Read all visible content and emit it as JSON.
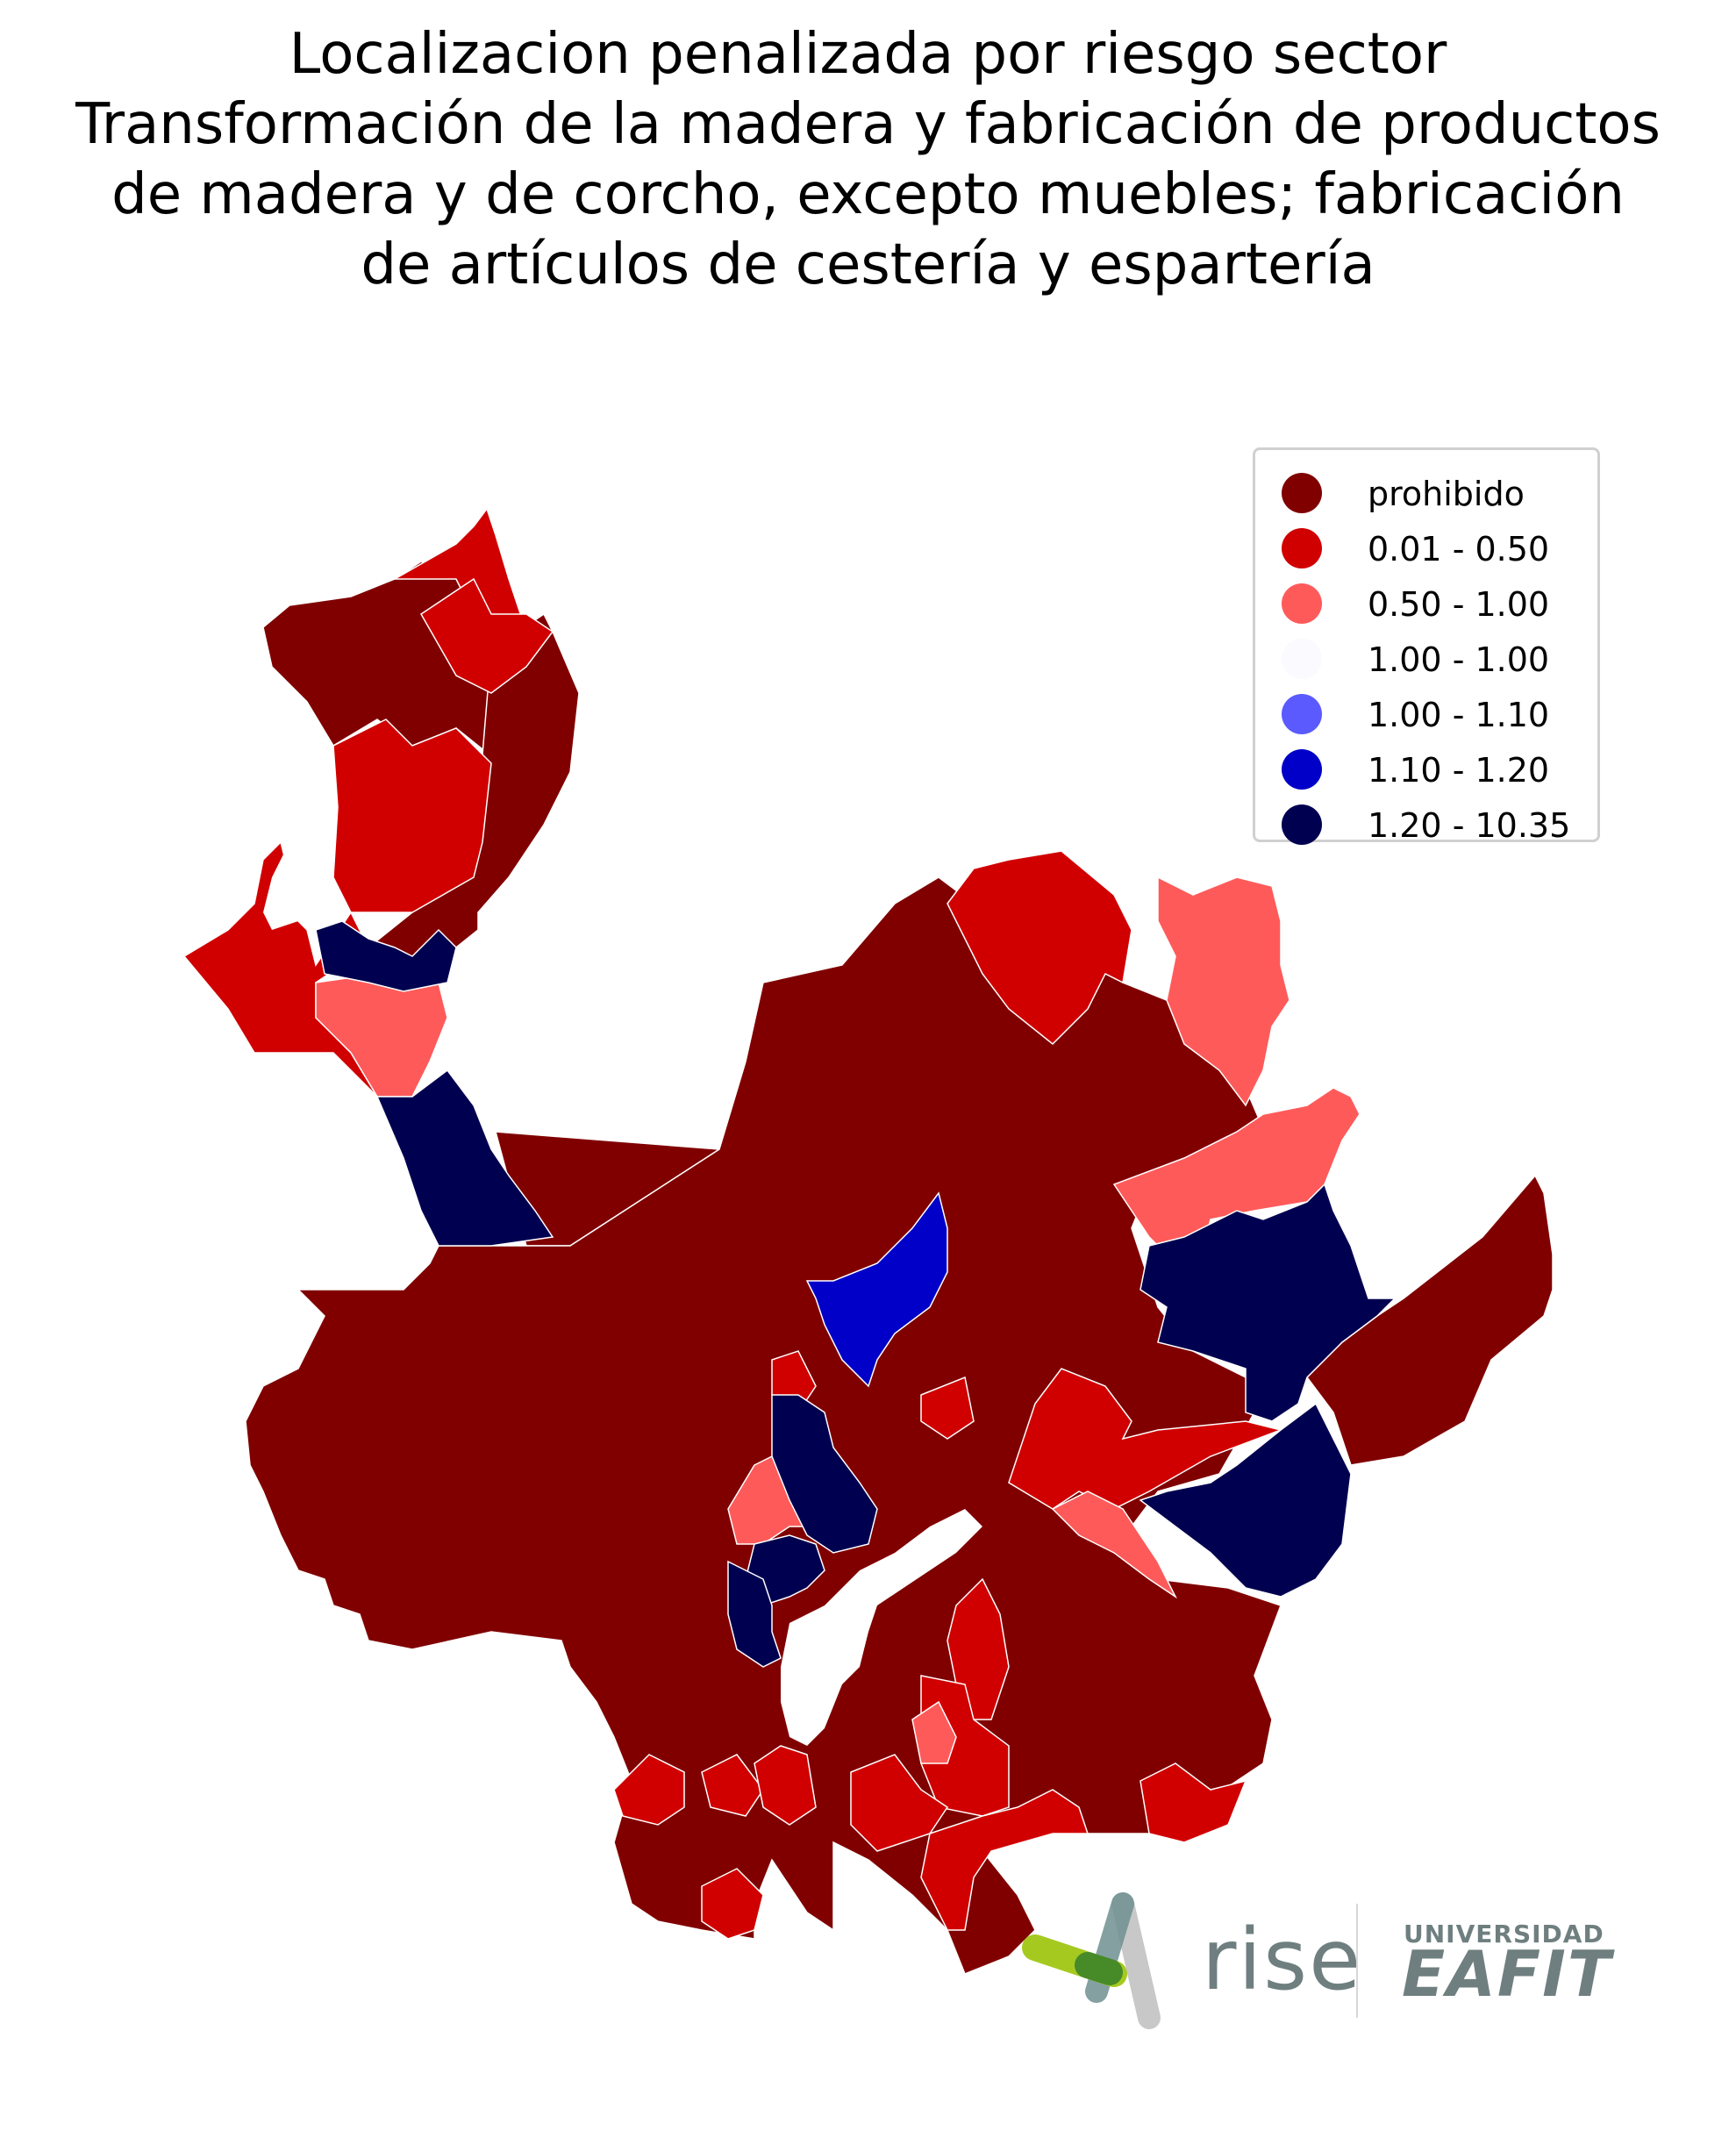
{
  "title": {
    "lines": [
      "Localizacion penalizada por riesgo sector",
      "Transformación de la madera y fabricación de productos",
      "de madera y de corcho, excepto muebles; fabricación",
      "de artículos de cestería y espartería"
    ]
  },
  "legend": {
    "items": [
      {
        "label": "prohibido",
        "color": "#800000"
      },
      {
        "label": "0.01 - 0.50",
        "color": "#d10000"
      },
      {
        "label": "0.50 - 1.00",
        "color": "#ff5a5a"
      },
      {
        "label": "1.00 - 1.00",
        "color": "#fafaff"
      },
      {
        "label": "1.00 - 1.10",
        "color": "#5a5aff"
      },
      {
        "label": "1.10 - 1.20",
        "color": "#0000c8"
      },
      {
        "label": "1.20 - 10.35",
        "color": "#000050"
      }
    ]
  },
  "map_colors": {
    "prohibido": "#800000",
    "low": "#d10000",
    "mid": "#ff5a5a",
    "high1": "#0000c8",
    "high2": "#000050",
    "border": "#ffffff"
  },
  "logos": {
    "rise": "rise",
    "university_top": "UNIVERSIDAD",
    "university_name": "EAFIT",
    "rise_green": "#a6c91f",
    "rise_dark_green": "#2f7a2a",
    "logo_gray": "#6f7f80"
  }
}
